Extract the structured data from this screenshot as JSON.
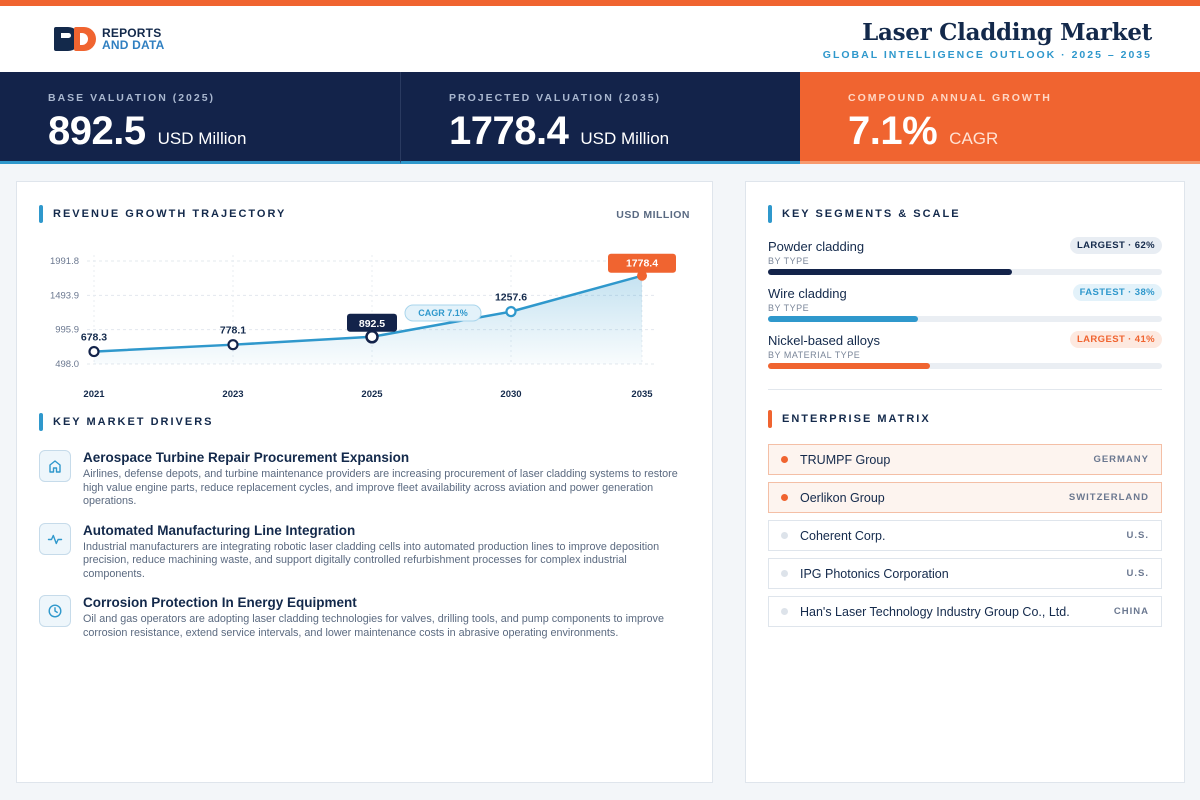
{
  "brand": {
    "line1": "REPORTS",
    "line2": "AND DATA"
  },
  "report": {
    "title": "Laser Cladding Market",
    "subtitle": "GLOBAL INTELLIGENCE OUTLOOK  ·  2025 – 2035"
  },
  "kpis": [
    {
      "label": "BASE VALUATION (2025)",
      "value": "892.5",
      "unit": "USD Million"
    },
    {
      "label": "PROJECTED VALUATION (2035)",
      "value": "1778.4",
      "unit": "USD Million"
    },
    {
      "label": "COMPOUND ANNUAL GROWTH",
      "value": "7.1%",
      "unit": "CAGR"
    }
  ],
  "trajectory": {
    "title": "REVENUE GROWTH TRAJECTORY",
    "unit": "USD MILLION"
  },
  "chart_data": {
    "type": "area",
    "categories": [
      "2021",
      "2023",
      "2025",
      "2030",
      "2035"
    ],
    "values": [
      678.3,
      778.1,
      892.5,
      1257.6,
      1778.4
    ],
    "value_labels": [
      "678.3",
      "778.1",
      "892.5",
      "1257.6",
      "1778.4"
    ],
    "y_ticks": [
      498.0,
      995.9,
      1493.9,
      1991.8
    ],
    "y_tick_labels": [
      "498.0",
      "995.9",
      "1493.9",
      "1991.8"
    ],
    "ylim": [
      498.0,
      1991.8
    ],
    "highlight": {
      "base_index": 2,
      "projected_index": 4
    },
    "annotation": "CAGR 7.1%",
    "colors": {
      "line": "#2f98cc",
      "navy": "#13234a",
      "accent": "#f06430"
    },
    "grid": true
  },
  "drivers": {
    "title": "KEY MARKET DRIVERS",
    "items": [
      {
        "icon": "building-icon",
        "title": "Aerospace Turbine Repair Procurement Expansion",
        "text": "Airlines, defense depots, and turbine maintenance providers are increasing procurement of laser cladding systems to restore high value engine parts, reduce replacement cycles, and improve fleet availability across aviation and power generation operations."
      },
      {
        "icon": "pulse-icon",
        "title": "Automated Manufacturing Line Integration",
        "text": "Industrial manufacturers are integrating robotic laser cladding cells into automated production lines to improve deposition precision, reduce machining waste, and support digitally controlled refurbishment processes for complex industrial components."
      },
      {
        "icon": "clock-icon",
        "title": "Corrosion Protection In Energy Equipment",
        "text": "Oil and gas operators are adopting laser cladding technologies for valves, drilling tools, and pump components to improve corrosion resistance, extend service intervals, and lower maintenance costs in abrasive operating environments."
      }
    ]
  },
  "segments": {
    "title": "KEY SEGMENTS & SCALE",
    "items": [
      {
        "name": "Powder cladding",
        "type": "BY TYPE",
        "badge": "LARGEST · 62%",
        "share": 0.62,
        "color": "#13234a",
        "badge_style": "navy"
      },
      {
        "name": "Wire cladding",
        "type": "BY TYPE",
        "badge": "FASTEST · 38%",
        "share": 0.38,
        "color": "#2f98cc",
        "badge_style": "blue"
      },
      {
        "name": "Nickel-based alloys",
        "type": "BY MATERIAL TYPE",
        "badge": "LARGEST · 41%",
        "share": 0.41,
        "color": "#f06430",
        "badge_style": "orange"
      }
    ]
  },
  "matrix": {
    "title": "ENTERPRISE MATRIX",
    "items": [
      {
        "name": "TRUMPF Group",
        "country": "GERMANY",
        "highlight": true
      },
      {
        "name": "Oerlikon Group",
        "country": "SWITZERLAND",
        "highlight": true
      },
      {
        "name": "Coherent Corp.",
        "country": "U.S.",
        "highlight": false
      },
      {
        "name": "IPG Photonics Corporation",
        "country": "U.S.",
        "highlight": false
      },
      {
        "name": "Han's Laser Technology Industry Group Co., Ltd.",
        "country": "CHINA",
        "highlight": false
      }
    ]
  }
}
